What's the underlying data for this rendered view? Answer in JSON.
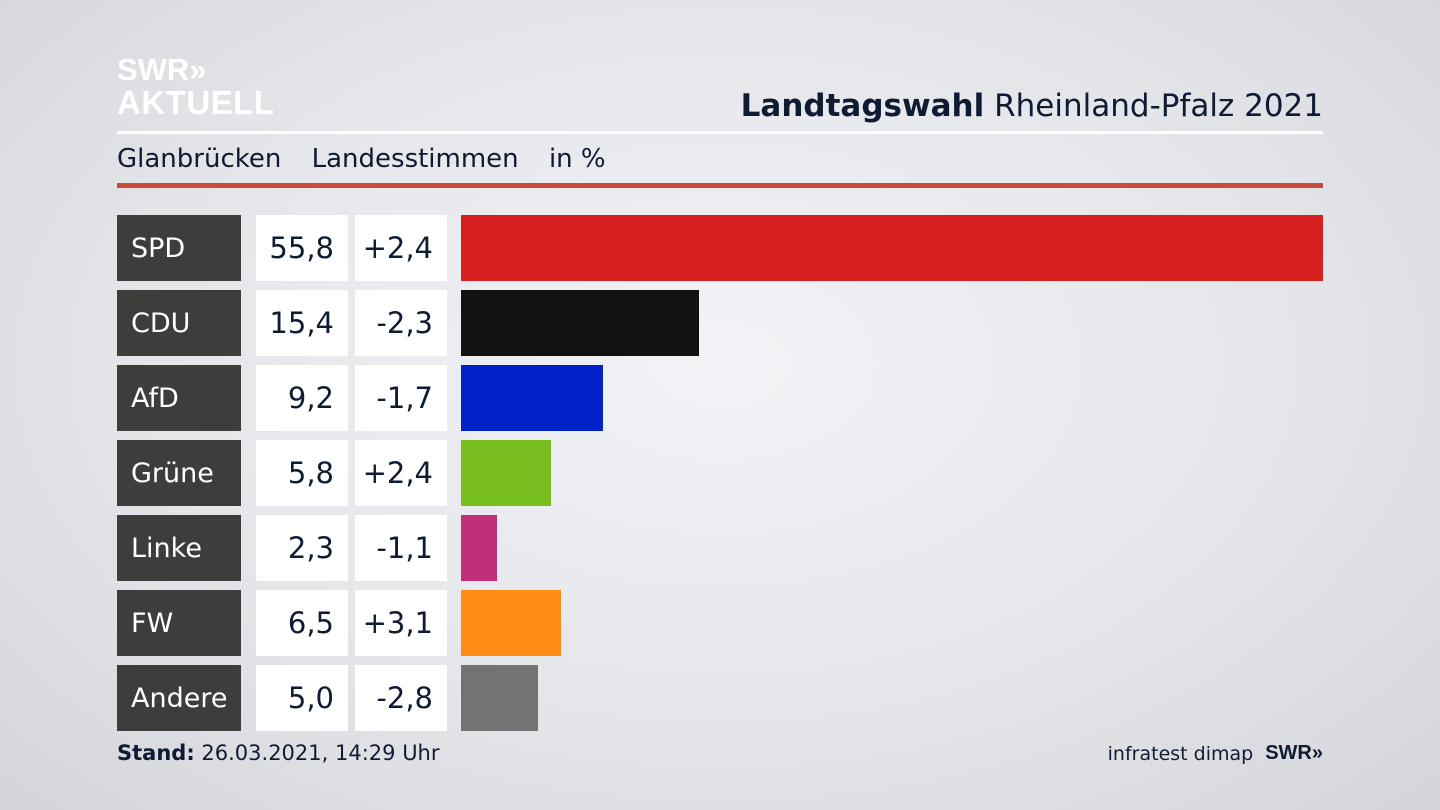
{
  "brand": {
    "line1": "SWR»",
    "line2": "AKTUELL"
  },
  "header": {
    "title_bold": "Landtagswahl",
    "title_rest": "Rheinland-Pfalz 2021"
  },
  "subtitle": {
    "place": "Glanbrücken",
    "type": "Landesstimmen",
    "unit": "in %"
  },
  "colors": {
    "rule_red": "#cc4a3c",
    "label_bg": "#3d3d3b",
    "text": "#0f1a33"
  },
  "chart_data": {
    "type": "bar",
    "orientation": "horizontal",
    "categories": [
      "SPD",
      "CDU",
      "AfD",
      "Grüne",
      "Linke",
      "FW",
      "Andere"
    ],
    "values": [
      55.8,
      15.4,
      9.2,
      5.8,
      2.3,
      6.5,
      5.0
    ],
    "value_labels": [
      "55,8",
      "15,4",
      "9,2",
      "5,8",
      "2,3",
      "6,5",
      "5,0"
    ],
    "changes": [
      2.4,
      -2.3,
      -1.7,
      2.4,
      -1.1,
      3.1,
      -2.8
    ],
    "change_labels": [
      "+2,4",
      "-2,3",
      "-1,7",
      "+2,4",
      "-1,1",
      "+3,1",
      "-2,8"
    ],
    "bar_colors": [
      "#d62020",
      "#121212",
      "#0022c8",
      "#78be1e",
      "#c0307a",
      "#ff8c17",
      "#737373"
    ],
    "title": "",
    "xlabel": "",
    "ylabel": "",
    "xlim": [
      0,
      55.8
    ],
    "grid": false
  },
  "footer": {
    "stand_label": "Stand:",
    "stand_value": "26.03.2021, 14:29 Uhr",
    "source": "infratest dimap",
    "source_brand": "SWR»"
  }
}
